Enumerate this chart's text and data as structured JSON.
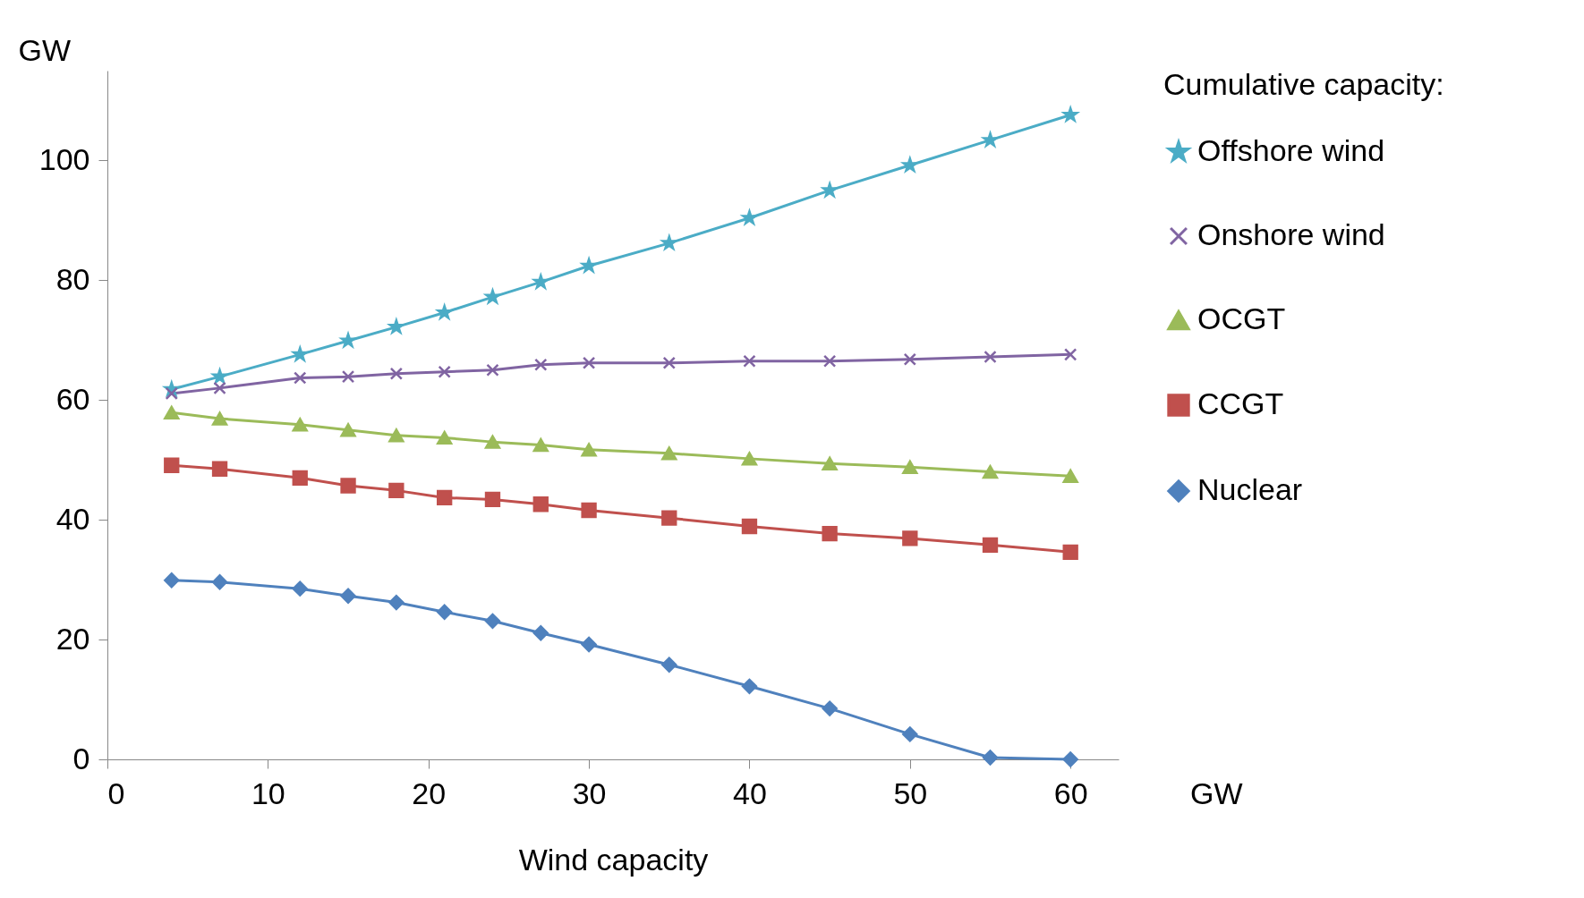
{
  "chart_data": {
    "type": "line",
    "xlabel": "Wind capacity",
    "ylabel": "GW",
    "legend_title": "Cumulative capacity:",
    "x": [
      4,
      7,
      12,
      15,
      18,
      21,
      24,
      27,
      30,
      35,
      40,
      45,
      50,
      55,
      60
    ],
    "series": [
      {
        "name": "Offshore wind",
        "color": "#4bacc6",
        "marker": "star",
        "values": [
          61.8,
          63.9,
          67.6,
          69.9,
          72.2,
          74.6,
          77.2,
          79.7,
          82.4,
          86.2,
          90.4,
          95,
          99.2,
          103.4,
          107.6
        ]
      },
      {
        "name": "Onshore wind",
        "color": "#8064a2",
        "marker": "cross",
        "values": [
          61.1,
          62,
          63.7,
          63.9,
          64.4,
          64.7,
          65,
          65.9,
          66.2,
          66.2,
          66.5,
          66.5,
          66.8,
          67.2,
          67.6
        ]
      },
      {
        "name": "OCGT",
        "color": "#9bbb59",
        "marker": "triangle",
        "values": [
          57.9,
          56.9,
          55.9,
          55,
          54.1,
          53.7,
          53,
          52.5,
          51.7,
          51.1,
          50.2,
          49.4,
          48.8,
          48,
          47.3
        ]
      },
      {
        "name": "CCGT",
        "color": "#c0504d",
        "marker": "square",
        "values": [
          49.1,
          48.5,
          47,
          45.7,
          44.9,
          43.7,
          43.4,
          42.6,
          41.6,
          40.3,
          38.9,
          37.7,
          36.9,
          35.8,
          34.6
        ]
      },
      {
        "name": "Nuclear",
        "color": "#4f81bd",
        "marker": "diamond",
        "values": [
          29.9,
          29.6,
          28.5,
          27.3,
          26.2,
          24.6,
          23.1,
          21.1,
          19.2,
          15.8,
          12.2,
          8.5,
          4.2,
          0.3,
          0
        ]
      }
    ],
    "annotations": [
      "GW"
    ],
    "xlim": [
      0,
      63
    ],
    "xticks": [
      0,
      10,
      20,
      30,
      40,
      50,
      60
    ],
    "ylim": [
      0,
      115
    ],
    "yticks": [
      0,
      20,
      40,
      60,
      80,
      100
    ],
    "grid": false,
    "legend": "right",
    "line_style": "solid"
  }
}
